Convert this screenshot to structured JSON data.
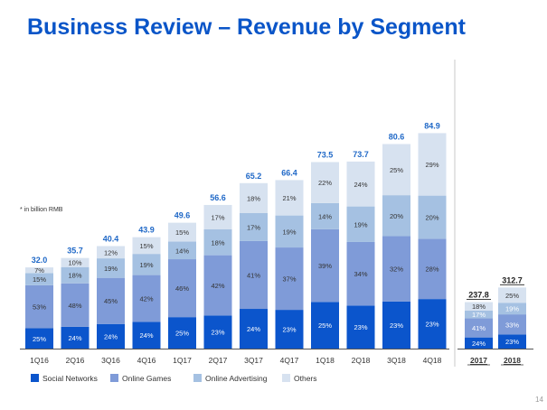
{
  "page": {
    "title": "Business Review – Revenue by Segment",
    "note": "* in billion RMB",
    "page_number": "14"
  },
  "chart_data": {
    "type": "bar",
    "stacked": true,
    "grid": false,
    "legend_position": "bottom-left",
    "quarterly": {
      "categories": [
        "1Q16",
        "2Q16",
        "3Q16",
        "4Q16",
        "1Q17",
        "2Q17",
        "3Q17",
        "4Q17",
        "1Q18",
        "2Q18",
        "3Q18",
        "4Q18"
      ],
      "totals": [
        32.0,
        35.7,
        40.4,
        43.9,
        49.6,
        56.6,
        65.2,
        66.4,
        73.5,
        73.7,
        80.6,
        84.9
      ],
      "total_labels": [
        "32.0",
        "35.7",
        "40.4",
        "43.9",
        "49.6",
        "56.6",
        "65.2",
        "66.4",
        "73.5",
        "73.7",
        "80.6",
        "84.9"
      ],
      "series": [
        {
          "name": "Social Networks",
          "values": [
            25,
            24,
            24,
            24,
            25,
            23,
            24,
            23,
            25,
            23,
            23,
            23
          ],
          "labels": [
            "25%",
            "24%",
            "24%",
            "24%",
            "25%",
            "23%",
            "24%",
            "23%",
            "25%",
            "23%",
            "23%",
            "23%"
          ]
        },
        {
          "name": "Online Games",
          "values": [
            53,
            48,
            45,
            42,
            46,
            42,
            41,
            37,
            39,
            34,
            32,
            28
          ],
          "labels": [
            "53%",
            "48%",
            "45%",
            "42%",
            "46%",
            "42%",
            "41%",
            "37%",
            "39%",
            "34%",
            "32%",
            "28%"
          ]
        },
        {
          "name": "Online Advertising",
          "values": [
            15,
            18,
            19,
            19,
            14,
            18,
            17,
            19,
            14,
            19,
            20,
            20
          ],
          "labels": [
            "15%",
            "18%",
            "19%",
            "19%",
            "14%",
            "18%",
            "17%",
            "19%",
            "14%",
            "19%",
            "20%",
            "20%"
          ]
        },
        {
          "name": "Others",
          "values": [
            7,
            10,
            12,
            15,
            15,
            17,
            18,
            21,
            22,
            24,
            25,
            29
          ],
          "labels": [
            "7%",
            "10%",
            "12%",
            "15%",
            "15%",
            "17%",
            "18%",
            "21%",
            "22%",
            "24%",
            "25%",
            "29%"
          ]
        }
      ]
    },
    "annual": {
      "categories": [
        "2017",
        "2018"
      ],
      "totals": [
        237.8,
        312.7
      ],
      "total_labels": [
        "237.8",
        "312.7"
      ],
      "series": [
        {
          "name": "Social Networks",
          "values": [
            24,
            23
          ],
          "labels": [
            "24%",
            "23%"
          ]
        },
        {
          "name": "Online Games",
          "values": [
            41,
            33
          ],
          "labels": [
            "41%",
            "33%"
          ]
        },
        {
          "name": "Online Advertising",
          "values": [
            17,
            19
          ],
          "labels": [
            "17%",
            "19%"
          ]
        },
        {
          "name": "Others",
          "values": [
            18,
            25
          ],
          "labels": [
            "18%",
            "25%"
          ]
        }
      ]
    },
    "legend": [
      "Social Networks",
      "Online Games",
      "Online Advertising",
      "Others"
    ],
    "colors": {
      "Social Networks": "#0b55cc",
      "Online Games": "#7f9bd8",
      "Online Advertising": "#a5c1e2",
      "Others": "#d7e2f0",
      "total_label": "#1f68c7",
      "axis": "#555555"
    }
  }
}
